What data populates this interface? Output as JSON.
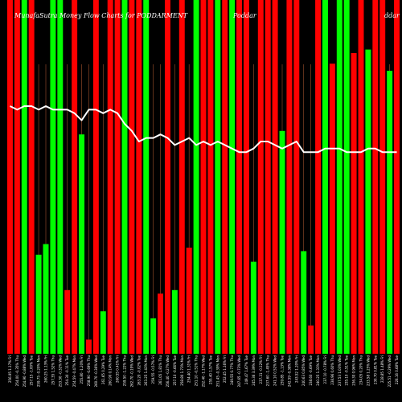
{
  "chart_data": {
    "type": "bar",
    "title": "MunafaSutra Money Flow Charts for PODDARMENT",
    "title_suffix": "Poddar",
    "title_right": "ddar",
    "ylim": [
      0,
      100
    ],
    "grid": "vertical",
    "colors": {
      "up": "#00ff00",
      "down": "#ff0000",
      "line": "#ffffff",
      "grid": "#a0522d",
      "background": "#000000"
    },
    "categories": [
      "Fri 27 Jun 2025",
      "Thu 26 Jun 2025",
      "Wed 25 Jun 2025",
      "Tue 24 Jun 2025",
      "Mon 23 Jun 2025",
      "Fri 20 Jun 2025",
      "Thu 19 Jun 2025",
      "Wed 18 Jun 2025",
      "Tue 17 Jun 2025",
      "Mon 16 Jun 2025",
      "Fri 13 Jun 2025",
      "Thu 12 Jun 2025",
      "Wed 11 Jun 2025",
      "Tue 10 Jun 2025",
      "Mon 09 Jun 2025",
      "Fri 06 Jun 2025",
      "Thu 05 Jun 2025",
      "Wed 04 Jun 2025",
      "Tue 03 Jun 2025",
      "Mon 02 Jun 2025",
      "Fri 30 May 2025",
      "Thu 29 May 2025",
      "Wed 28 May 2025",
      "Tue 27 May 2025",
      "Mon 26 May 2025",
      "Fri 23 May 2025",
      "Thu 22 May 2025",
      "Wed 21 May 2025",
      "Tue 20 May 2025",
      "Mon 19 May 2025",
      "Fri 16 May 2025",
      "Thu 15 May 2025",
      "Wed 14 May 2025",
      "Tue 13 May 2025",
      "Mon 12 May 2025",
      "Fri 09 May 2025",
      "Thu 08 May 2025",
      "Wed 07 May 2025",
      "Tue 06 May 2025",
      "Mon 05 May 2025",
      "Fri 02 May 2025",
      "Wed 30 Apr 2025",
      "Tue 29 Apr 2025",
      "Mon 28 Apr 2025",
      "Fri 25 Apr 2025",
      "Thu 24 Apr 2025",
      "Wed 23 Apr 2025",
      "Tue 22 Apr 2025",
      "Mon 21 Apr 2025",
      "Thu 17 Apr 2025",
      "Wed 16 Apr 2025",
      "Tue 15 Apr 2025",
      "Fri 11 Apr 2025",
      "Wed 09 Apr 2025",
      "Tue 08 Apr 2025"
    ],
    "x_tick_labels": [
      "256.95 1.17% Fri",
      "254.00 -0.35% Thu",
      "254.90 -0.88% Wed",
      "257.15 -1.00% Tue",
      "259.75 -0.20% Mon",
      "260.25 1.13% Fri",
      "257.35 1.52% Thu",
      "253.50 -0.32% Wed",
      "254.30 -0.11% Tue",
      "254.59 -0.47% Mon",
      "255.80 -1.20% Fri",
      "258.90 -0.69% Thu",
      "260.70 -0.36% Wed",
      "261.65 0.29% Tue",
      "260.90 0.14% Mon",
      "260.55 0.41% Fri",
      "259.50 -1.22% Thu",
      "262.70 -0.19% Wed",
      "263.20 -0.02% Tue",
      "263.25 1.43% Mon",
      "259.55 -0.57% Fri",
      "261.05 1.81% Thu",
      "256.40 -0.27% Wed",
      "257.10 -0.66% Tue",
      "258.80 1.73% Mon",
      "254.40 1.31% Fri",
      "251.10 -0.51% Thu",
      "252.40 -1.17% Wed",
      "255.40 1.57% Tue",
      "251.45 -0.39% Mon",
      "252.45 1.16% Fri",
      "249.55 0.77% Thu",
      "247.65 -0.73% Wed",
      "249.47 1.67% Tue",
      "245.36 3.39% Mon",
      "237.31 -0.12% Fri",
      "237.60 -1.45% Thu",
      "241.10 0.52% Wed",
      "239.85 -1.13% Tue",
      "242.59 -0.38% Mon",
      "243.52 1.20% Fri",
      "240.63 0.85% Wed",
      "238.60 -0.69% Tue",
      "240.25 1.33% Mon",
      "237.10 -0.78% Fri",
      "238.96 0.60% Thu",
      "237.53 1.03% Wed",
      "235.10 -0.51% Tue",
      "236.30 0.96% Mon",
      "234.05 0.20% Thu",
      "233.58 1.25% Wed",
      "230.70 0.81% Tue",
      "228.85 1.48% Fri",
      "225.51 -0.29% Wed",
      "226.16 0.68% Tue"
    ],
    "series": [
      {
        "type": "bar",
        "directions": [
          "down",
          "down",
          "up",
          "down",
          "up",
          "up",
          "up",
          "up",
          "down",
          "down",
          "up",
          "down",
          "down",
          "up",
          "down",
          "down",
          "up",
          "down",
          "down",
          "up",
          "up",
          "down",
          "down",
          "up",
          "down",
          "down",
          "up",
          "down",
          "down",
          "up",
          "down",
          "up",
          "down",
          "down",
          "up",
          "down",
          "down",
          "down",
          "up",
          "down",
          "down",
          "up",
          "down",
          "down",
          "up",
          "down",
          "up",
          "up",
          "down",
          "down",
          "up",
          "down",
          "down",
          "up",
          "down"
        ],
        "values": [
          100,
          100,
          100,
          100,
          28,
          31,
          100,
          100,
          18,
          100,
          62,
          4,
          100,
          12,
          100,
          100,
          100,
          100,
          100,
          100,
          10,
          17,
          100,
          18,
          100,
          30,
          100,
          100,
          100,
          100,
          100,
          100,
          100,
          100,
          26,
          100,
          100,
          100,
          63,
          100,
          100,
          29,
          8,
          100,
          100,
          82,
          100,
          100,
          85,
          100,
          86,
          100,
          100,
          80,
          100
        ]
      },
      {
        "type": "line",
        "values": [
          70,
          69,
          70,
          70,
          69,
          70,
          69,
          69,
          69,
          68,
          66,
          69,
          69,
          68,
          69,
          68,
          65,
          63,
          60,
          61,
          61,
          62,
          61,
          59,
          60,
          61,
          59,
          60,
          59,
          60,
          59,
          58,
          57,
          57,
          58,
          60,
          60,
          59,
          58,
          59,
          60,
          57,
          57,
          57,
          58,
          58,
          58,
          57,
          57,
          57,
          58,
          58,
          57,
          57,
          57
        ]
      }
    ]
  }
}
